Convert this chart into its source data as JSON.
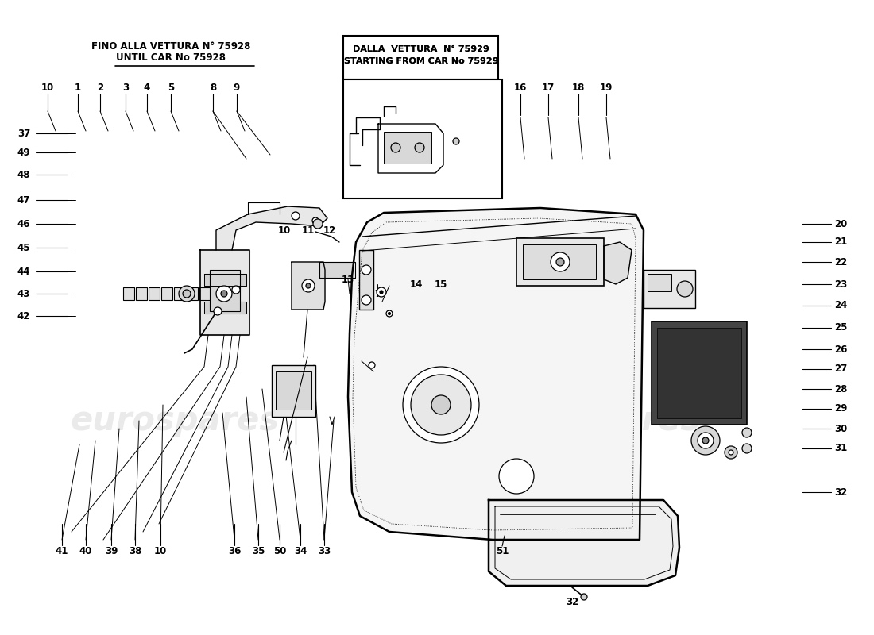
{
  "bg": "#ffffff",
  "lc": "#000000",
  "wm_color": "#cccccc",
  "wm_alpha": 0.4,
  "wm_text": "eurospares",
  "header_left1": "FINO ALLA VETTURA N° 75928",
  "header_left2": "UNTIL CAR No 75928",
  "header_box1": "DALLA  VETTURA  N° 75929",
  "header_box2": "STARTING FROM CAR No 75929",
  "fs": 8.5
}
